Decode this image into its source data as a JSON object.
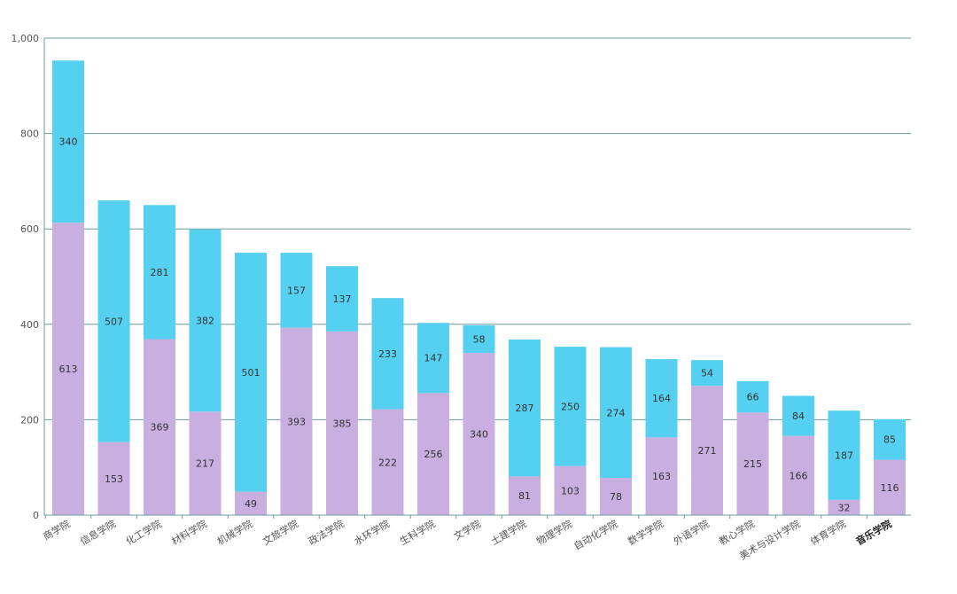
{
  "chart_data": {
    "type": "bar",
    "stacked": true,
    "categories": [
      "商学院",
      "信息学院",
      "化工学院",
      "材料学院",
      "机械学院",
      "文旅学院",
      "政法学院",
      "水环学院",
      "生科学院",
      "文学院",
      "土建学院",
      "物理学院",
      "自动化学院",
      "数学学院",
      "外语学院",
      "教心学院",
      "美术与设计学院",
      "体育学院",
      "音乐学院"
    ],
    "series": [
      {
        "name": "",
        "color": "#c9aee0",
        "values": [
          613,
          153,
          369,
          217,
          49,
          393,
          385,
          222,
          256,
          340,
          81,
          103,
          78,
          163,
          271,
          215,
          166,
          32,
          116
        ]
      },
      {
        "name": "",
        "color": "#55d0f0",
        "values": [
          340,
          507,
          281,
          382,
          501,
          157,
          137,
          233,
          147,
          58,
          287,
          250,
          274,
          164,
          54,
          66,
          84,
          187,
          85
        ]
      }
    ],
    "y_ticks": [
      "0",
      "200",
      "400",
      "600",
      "800",
      "1,000"
    ],
    "y_tick_values": [
      0,
      200,
      400,
      600,
      800,
      1000
    ],
    "ylim": [
      0,
      1000
    ],
    "grid": true,
    "highlighted_category": "音乐学院",
    "title": "",
    "xlabel": "",
    "ylabel": ""
  }
}
